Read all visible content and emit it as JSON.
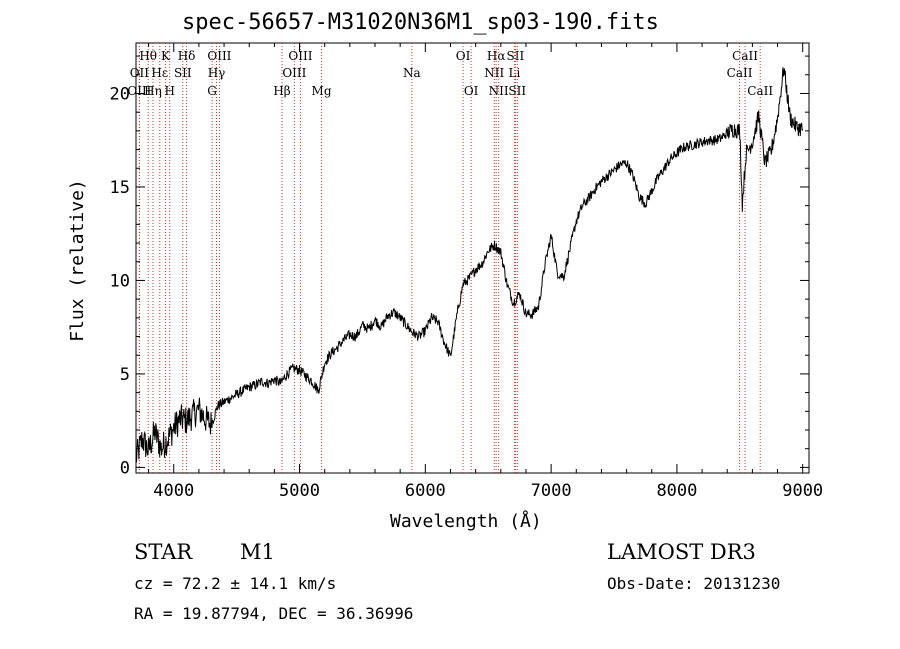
{
  "chart_data": {
    "type": "line",
    "title": "spec-56657-M31020N36M1_sp03-190.fits",
    "xlabel": "Wavelength (Å)",
    "ylabel": "Flux (relative)",
    "xlim": [
      3700,
      9050
    ],
    "ylim": [
      -0.3,
      22.7
    ],
    "xticks": [
      4000,
      5000,
      6000,
      7000,
      8000,
      9000
    ],
    "yticks": [
      0,
      5,
      10,
      15,
      20
    ],
    "series": [
      {
        "name": "flux",
        "x": [
          3700,
          3750,
          3800,
          3850,
          3900,
          3950,
          4000,
          4050,
          4100,
          4150,
          4200,
          4250,
          4300,
          4350,
          4400,
          4450,
          4500,
          4550,
          4600,
          4650,
          4700,
          4750,
          4800,
          4850,
          4900,
          4950,
          5000,
          5050,
          5100,
          5150,
          5200,
          5250,
          5300,
          5350,
          5400,
          5450,
          5500,
          5550,
          5600,
          5650,
          5700,
          5750,
          5800,
          5850,
          5900,
          5950,
          6000,
          6050,
          6100,
          6150,
          6200,
          6250,
          6300,
          6350,
          6400,
          6450,
          6500,
          6550,
          6600,
          6650,
          6700,
          6750,
          6800,
          6850,
          6900,
          6950,
          7000,
          7050,
          7100,
          7150,
          7200,
          7250,
          7300,
          7350,
          7400,
          7450,
          7500,
          7550,
          7600,
          7650,
          7700,
          7750,
          7800,
          7850,
          7900,
          7950,
          8000,
          8050,
          8100,
          8150,
          8200,
          8250,
          8300,
          8350,
          8400,
          8450,
          8500,
          8520,
          8550,
          8600,
          8650,
          8700,
          8750,
          8800,
          8850,
          8900,
          8950,
          9000
        ],
        "y": [
          0.5,
          1.5,
          0.9,
          1.9,
          1.0,
          1.5,
          2.1,
          2.6,
          2.5,
          2.8,
          3.1,
          2.6,
          2.3,
          3.3,
          3.5,
          3.7,
          3.9,
          4.1,
          4.3,
          4.4,
          4.6,
          4.5,
          4.7,
          4.5,
          5.0,
          5.3,
          5.2,
          4.9,
          4.6,
          4.1,
          5.6,
          6.1,
          6.4,
          6.8,
          7.1,
          7.0,
          7.6,
          7.4,
          7.9,
          7.5,
          8.1,
          8.3,
          8.0,
          7.6,
          7.2,
          7.0,
          7.3,
          8.0,
          7.8,
          6.7,
          5.9,
          8.1,
          9.8,
          10.1,
          10.6,
          10.9,
          11.6,
          11.9,
          11.5,
          9.8,
          8.8,
          9.3,
          8.2,
          8.2,
          8.6,
          10.8,
          12.4,
          10.4,
          10.2,
          11.7,
          13.2,
          14.0,
          14.4,
          14.9,
          15.3,
          15.6,
          15.9,
          16.2,
          16.3,
          15.6,
          14.5,
          14.1,
          14.8,
          15.5,
          16.0,
          16.5,
          16.8,
          17.1,
          17.2,
          17.3,
          17.4,
          17.5,
          17.5,
          17.6,
          17.9,
          18.1,
          18.0,
          14.1,
          16.8,
          17.4,
          18.8,
          16.3,
          16.9,
          18.7,
          21.4,
          18.7,
          18.2,
          18.1
        ]
      }
    ],
    "lines": [
      {
        "label": "Hθ",
        "wl": 3797,
        "row": 1
      },
      {
        "label": "OII",
        "wl": 3727,
        "row": 2
      },
      {
        "label": "OIII",
        "wl": 3727,
        "row": 3
      },
      {
        "label": "Hη",
        "wl": 3835,
        "row": 3
      },
      {
        "label": "Hε",
        "wl": 3889,
        "row": 2
      },
      {
        "label": "K",
        "wl": 3934,
        "row": 1
      },
      {
        "label": "H",
        "wl": 3968,
        "row": 3
      },
      {
        "label": "SII",
        "wl": 4072,
        "row": 2
      },
      {
        "label": "Hδ",
        "wl": 4102,
        "row": 1
      },
      {
        "label": "OIII",
        "wl": 4363,
        "row": 1
      },
      {
        "label": "Hγ",
        "wl": 4340,
        "row": 2
      },
      {
        "label": "G",
        "wl": 4305,
        "row": 3
      },
      {
        "label": "Hβ",
        "wl": 4861,
        "row": 3
      },
      {
        "label": "OIII",
        "wl": 5007,
        "row": 1
      },
      {
        "label": "OIII",
        "wl": 4959,
        "row": 2
      },
      {
        "label": "Mg",
        "wl": 5175,
        "row": 3
      },
      {
        "label": "Na",
        "wl": 5893,
        "row": 2
      },
      {
        "label": "OI",
        "wl": 6300,
        "row": 1
      },
      {
        "label": "OI",
        "wl": 6364,
        "row": 3
      },
      {
        "label": "Hα",
        "wl": 6563,
        "row": 1
      },
      {
        "label": "NII",
        "wl": 6548,
        "row": 2
      },
      {
        "label": "NII",
        "wl": 6583,
        "row": 3
      },
      {
        "label": "SII",
        "wl": 6716,
        "row": 1
      },
      {
        "label": "Li",
        "wl": 6708,
        "row": 2
      },
      {
        "label": "SII",
        "wl": 6731,
        "row": 3
      },
      {
        "label": "CaII",
        "wl": 8542,
        "row": 1
      },
      {
        "label": "CaII",
        "wl": 8498,
        "row": 2
      },
      {
        "label": "CaII",
        "wl": 8662,
        "row": 3
      }
    ]
  },
  "info": {
    "class_label": "STAR",
    "subclass": "M1",
    "survey": "LAMOST DR3",
    "cz": "cz = 72.2 ± 14.1 km/s",
    "obs_date": "Obs-Date: 20131230",
    "coords": "RA =  19.87794, DEC =  36.36996"
  },
  "style": {
    "line_color": "#000000",
    "marker_color": "#c0392b"
  }
}
